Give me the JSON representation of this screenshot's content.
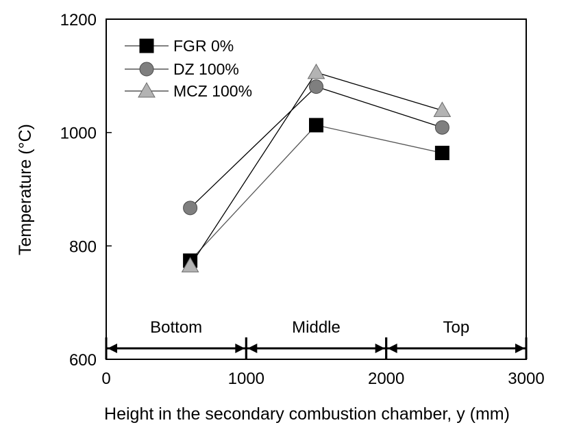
{
  "chart_data": {
    "type": "line",
    "title": "",
    "xlabel": "Height in the secondary combustion chamber, y (mm)",
    "ylabel": "Temperature (°C)",
    "xlim": [
      0,
      3000
    ],
    "ylim": [
      600,
      1200
    ],
    "x_ticks": [
      "0",
      "1000",
      "2000",
      "3000"
    ],
    "y_ticks": [
      "600",
      "800",
      "1000",
      "1200"
    ],
    "grid": false,
    "legend_position": "top-left",
    "series": [
      {
        "name": "FGR 0%",
        "marker": "square",
        "color": "#000000",
        "x": [
          600,
          1500,
          2400
        ],
        "y": [
          774,
          1013,
          964
        ]
      },
      {
        "name": "DZ 100%",
        "marker": "circle",
        "color": "#7f7f7f",
        "x": [
          600,
          1500,
          2400
        ],
        "y": [
          867,
          1081,
          1009
        ]
      },
      {
        "name": "MCZ 100%",
        "marker": "triangle",
        "color": "#b3b3b3",
        "x": [
          600,
          1500,
          2400
        ],
        "y": [
          765,
          1106,
          1039
        ]
      }
    ],
    "regions": [
      {
        "label": "Bottom",
        "x_start": 0,
        "x_end": 1000
      },
      {
        "label": "Middle",
        "x_start": 1000,
        "x_end": 2000
      },
      {
        "label": "Top",
        "x_start": 2000,
        "x_end": 3000
      }
    ]
  }
}
